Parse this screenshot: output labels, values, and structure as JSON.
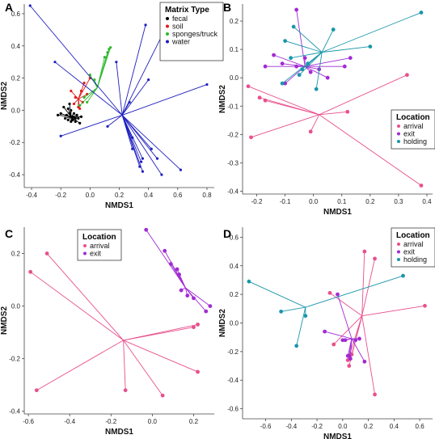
{
  "chart_data": [
    {
      "panel": "A",
      "type": "scatter",
      "xlabel": "NMDS1",
      "ylabel": "NMDS2",
      "xlim": [
        -0.45,
        0.85
      ],
      "ylim": [
        -0.48,
        0.66
      ],
      "xticks": [
        "-0.4",
        "-0.2",
        "0.0",
        "0.2",
        "0.4",
        "0.6",
        "0.8"
      ],
      "xtick_values": [
        -0.4,
        -0.2,
        0.0,
        0.2,
        0.4,
        0.6,
        0.8
      ],
      "yticks": [
        "0.6",
        "0.4",
        "0.2",
        "0.0",
        "-0.2",
        "-0.4"
      ],
      "ytick_values": [
        0.6,
        0.4,
        0.2,
        0.0,
        -0.2,
        -0.4
      ],
      "legend": {
        "title": "Matrix Type",
        "position": "top-right"
      },
      "series": [
        {
          "name": "fecal",
          "color": "#000000",
          "centroid": [
            -0.13,
            -0.04
          ],
          "points": [
            [
              -0.22,
              -0.03
            ],
            [
              -0.2,
              -0.02
            ],
            [
              -0.18,
              0.02
            ],
            [
              -0.17,
              -0.05
            ],
            [
              -0.16,
              -0.03
            ],
            [
              -0.15,
              0.01
            ],
            [
              -0.15,
              -0.06
            ],
            [
              -0.14,
              -0.02
            ],
            [
              -0.13,
              -0.07
            ],
            [
              -0.13,
              0.0
            ],
            [
              -0.12,
              -0.04
            ],
            [
              -0.12,
              -0.06
            ],
            [
              -0.11,
              -0.02
            ],
            [
              -0.1,
              -0.05
            ],
            [
              -0.1,
              -0.07
            ],
            [
              -0.09,
              -0.03
            ],
            [
              -0.08,
              -0.05
            ],
            [
              -0.07,
              -0.08
            ],
            [
              -0.06,
              -0.04
            ],
            [
              -0.14,
              0.04
            ]
          ]
        },
        {
          "name": "soil",
          "color": "#e41a1c",
          "centroid": [
            -0.08,
            0.07
          ],
          "points": [
            [
              -0.13,
              0.12
            ],
            [
              -0.1,
              0.08
            ],
            [
              -0.08,
              0.02
            ],
            [
              -0.06,
              0.12
            ],
            [
              -0.05,
              0.05
            ],
            [
              -0.04,
              0.17
            ],
            [
              -0.02,
              0.1
            ],
            [
              0.0,
              0.2
            ],
            [
              -0.11,
              0.04
            ],
            [
              -0.07,
              0.01
            ]
          ]
        },
        {
          "name": "sponges/truck",
          "color": "#2eb82e",
          "centroid": [
            0.05,
            0.14
          ],
          "points": [
            [
              -0.07,
              0.03
            ],
            [
              -0.04,
              0.08
            ],
            [
              0.0,
              0.22
            ],
            [
              0.03,
              0.19
            ],
            [
              0.1,
              0.33
            ],
            [
              0.12,
              0.36
            ],
            [
              0.13,
              0.38
            ],
            [
              0.14,
              0.39
            ],
            [
              -0.02,
              0.05
            ]
          ]
        },
        {
          "name": "water",
          "color": "#1f1fbf",
          "centroid": [
            0.22,
            -0.03
          ],
          "points": [
            [
              -0.41,
              0.65
            ],
            [
              -0.24,
              0.3
            ],
            [
              -0.2,
              -0.16
            ],
            [
              0.12,
              -0.1
            ],
            [
              0.18,
              0.3
            ],
            [
              0.29,
              -0.24
            ],
            [
              0.34,
              -0.35
            ],
            [
              0.35,
              -0.32
            ],
            [
              0.36,
              -0.3
            ],
            [
              0.36,
              -0.38
            ],
            [
              0.38,
              0.53
            ],
            [
              0.4,
              0.19
            ],
            [
              0.42,
              -0.24
            ],
            [
              0.46,
              -0.3
            ],
            [
              0.49,
              -0.4
            ],
            [
              0.49,
              0.46
            ],
            [
              0.62,
              -0.37
            ],
            [
              0.8,
              0.16
            ],
            [
              0.29,
              -0.17
            ],
            [
              0.27,
              0.05
            ]
          ]
        }
      ]
    },
    {
      "panel": "B",
      "type": "scatter",
      "xlabel": "NMDS1",
      "ylabel": "NMDS2",
      "xlim": [
        -0.25,
        0.42
      ],
      "ylim": [
        -0.41,
        0.26
      ],
      "xticks": [
        "-0.2",
        "-0.1",
        "0.0",
        "0.1",
        "0.2",
        "0.3",
        "0.4"
      ],
      "xtick_values": [
        -0.2,
        -0.1,
        0.0,
        0.1,
        0.2,
        0.3,
        0.4
      ],
      "yticks": [
        "0.2",
        "0.1",
        "0.0",
        "-0.1",
        "-0.2",
        "-0.3",
        "-0.4"
      ],
      "ytick_values": [
        0.2,
        0.1,
        0.0,
        -0.1,
        -0.2,
        -0.3,
        -0.4
      ],
      "legend": {
        "title": "Location",
        "position": "right"
      },
      "series": [
        {
          "name": "arrival",
          "color": "#e8508c",
          "centroid": [
            0.02,
            -0.13
          ],
          "points": [
            [
              -0.23,
              -0.03
            ],
            [
              -0.22,
              -0.21
            ],
            [
              -0.19,
              -0.07
            ],
            [
              -0.17,
              -0.08
            ],
            [
              -0.01,
              -0.19
            ],
            [
              0.12,
              -0.12
            ],
            [
              0.33,
              0.01
            ],
            [
              0.38,
              -0.38
            ]
          ]
        },
        {
          "name": "exit",
          "color": "#a12ad4",
          "centroid": [
            -0.03,
            0.04
          ],
          "points": [
            [
              -0.17,
              0.04
            ],
            [
              -0.14,
              0.08
            ],
            [
              -0.11,
              0.05
            ],
            [
              -0.1,
              -0.02
            ],
            [
              -0.06,
              0.24
            ],
            [
              -0.06,
              0.04
            ],
            [
              -0.03,
              0.07
            ],
            [
              -0.01,
              0.02
            ],
            [
              0.02,
              0.03
            ],
            [
              0.05,
              0.0
            ],
            [
              0.11,
              0.04
            ],
            [
              0.13,
              0.07
            ]
          ]
        },
        {
          "name": "holding",
          "color": "#1a96aa",
          "centroid": [
            0.03,
            0.09
          ],
          "points": [
            [
              -0.11,
              -0.02
            ],
            [
              -0.1,
              0.13
            ],
            [
              -0.08,
              0.07
            ],
            [
              -0.07,
              0.18
            ],
            [
              -0.05,
              0.01
            ],
            [
              -0.04,
              0.03
            ],
            [
              0.01,
              -0.04
            ],
            [
              0.07,
              0.17
            ],
            [
              0.2,
              0.11
            ],
            [
              0.38,
              0.23
            ],
            [
              -0.02,
              0.05
            ]
          ]
        }
      ]
    },
    {
      "panel": "C",
      "type": "scatter",
      "xlabel": "NMDS1",
      "ylabel": "NMDS2",
      "xlim": [
        -0.62,
        0.3
      ],
      "ylim": [
        -0.41,
        0.3
      ],
      "xticks": [
        "-0.6",
        "-0.4",
        "-0.2",
        "0.0",
        "0.2"
      ],
      "xtick_values": [
        -0.6,
        -0.4,
        -0.2,
        0.0,
        0.2
      ],
      "yticks": [
        "0.2",
        "0.0",
        "-0.2",
        "-0.4"
      ],
      "ytick_values": [
        0.2,
        0.0,
        -0.2,
        -0.4
      ],
      "legend": {
        "title": "Location",
        "position": "top-left"
      },
      "series": [
        {
          "name": "arrival",
          "color": "#e8508c",
          "centroid": [
            -0.14,
            -0.13
          ],
          "points": [
            [
              -0.59,
              0.13
            ],
            [
              -0.51,
              0.2
            ],
            [
              -0.56,
              -0.32
            ],
            [
              -0.13,
              -0.32
            ],
            [
              0.05,
              -0.34
            ],
            [
              0.2,
              -0.08
            ],
            [
              0.22,
              -0.07
            ],
            [
              0.22,
              -0.25
            ]
          ]
        },
        {
          "name": "exit",
          "color": "#a12ad4",
          "centroid": [
            0.16,
            0.07
          ],
          "points": [
            [
              -0.03,
              0.29
            ],
            [
              0.06,
              0.21
            ],
            [
              0.09,
              0.16
            ],
            [
              0.12,
              0.14
            ],
            [
              0.13,
              0.12
            ],
            [
              0.14,
              0.06
            ],
            [
              0.17,
              0.04
            ],
            [
              0.2,
              0.03
            ],
            [
              0.26,
              -0.02
            ],
            [
              0.28,
              0.0
            ]
          ]
        }
      ]
    },
    {
      "panel": "D",
      "type": "scatter",
      "xlabel": "NMDS1",
      "ylabel": "NMDS2",
      "xlim": [
        -0.78,
        0.7
      ],
      "ylim": [
        -0.67,
        0.67
      ],
      "xticks": [
        "-0.6",
        "-0.4",
        "-0.2",
        "0.0",
        "0.2",
        "0.4",
        "0.6"
      ],
      "xtick_values": [
        -0.6,
        -0.4,
        -0.2,
        0.0,
        0.2,
        0.4,
        0.6
      ],
      "yticks": [
        "0.6",
        "0.4",
        "0.2",
        "0.0",
        "-0.2",
        "-0.4",
        "-0.6"
      ],
      "ytick_values": [
        0.6,
        0.4,
        0.2,
        0.0,
        -0.2,
        -0.4,
        -0.6
      ],
      "legend": {
        "title": "Location",
        "position": "top-right"
      },
      "series": [
        {
          "name": "arrival",
          "color": "#e8508c",
          "centroid": [
            0.15,
            0.05
          ],
          "points": [
            [
              -0.1,
              0.21
            ],
            [
              -0.07,
              -0.15
            ],
            [
              0.04,
              -0.26
            ],
            [
              0.05,
              -0.3
            ],
            [
              0.07,
              -0.22
            ],
            [
              0.17,
              0.5
            ],
            [
              0.25,
              0.45
            ],
            [
              0.25,
              -0.5
            ],
            [
              0.64,
              0.12
            ]
          ]
        },
        {
          "name": "exit",
          "color": "#a12ad4",
          "centroid": [
            0.07,
            -0.11
          ],
          "points": [
            [
              -0.14,
              -0.06
            ],
            [
              -0.04,
              0.2
            ],
            [
              0.0,
              -0.12
            ],
            [
              0.02,
              -0.12
            ],
            [
              0.04,
              -0.23
            ],
            [
              0.06,
              -0.25
            ],
            [
              0.1,
              -0.12
            ],
            [
              0.13,
              -0.11
            ],
            [
              0.17,
              -0.27
            ],
            [
              0.05,
              -0.23
            ]
          ]
        },
        {
          "name": "holding",
          "color": "#1a96aa",
          "centroid": [
            -0.29,
            0.11
          ],
          "points": [
            [
              -0.73,
              0.29
            ],
            [
              -0.48,
              0.08
            ],
            [
              -0.29,
              0.05
            ],
            [
              -0.36,
              -0.16
            ],
            [
              0.47,
              0.33
            ]
          ]
        }
      ]
    }
  ],
  "panel_labels": [
    "A",
    "B",
    "C",
    "D"
  ]
}
